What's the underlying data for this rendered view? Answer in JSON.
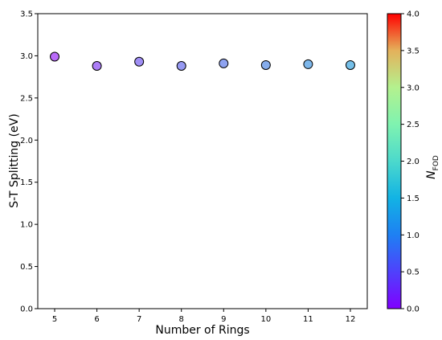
{
  "chart_data": {
    "type": "scatter",
    "xlabel": "Number of Rings",
    "ylabel": "S-T Splitting (eV)",
    "x": [
      5,
      6,
      7,
      8,
      9,
      10,
      11,
      12
    ],
    "y": [
      2.99,
      2.88,
      2.93,
      2.88,
      2.91,
      2.89,
      2.9,
      2.89
    ],
    "color_values": [
      0.55,
      0.65,
      0.75,
      0.82,
      0.88,
      0.95,
      1.02,
      1.08
    ],
    "xlim": [
      4.6,
      12.4
    ],
    "ylim": [
      0.0,
      3.5
    ],
    "x_ticks": [
      "5",
      "6",
      "7",
      "8",
      "9",
      "10",
      "11",
      "12"
    ],
    "y_ticks": [
      "0.0",
      "0.5",
      "1.0",
      "1.5",
      "2.0",
      "2.5",
      "3.0",
      "3.5"
    ],
    "colorbar": {
      "label_main": "N",
      "label_sub": "FOD",
      "range": [
        0.0,
        4.0
      ],
      "ticks": [
        "0.0",
        "0.5",
        "1.0",
        "1.5",
        "2.0",
        "2.5",
        "3.0",
        "3.5",
        "4.0"
      ],
      "colormap": "rainbow"
    },
    "grid": false
  }
}
